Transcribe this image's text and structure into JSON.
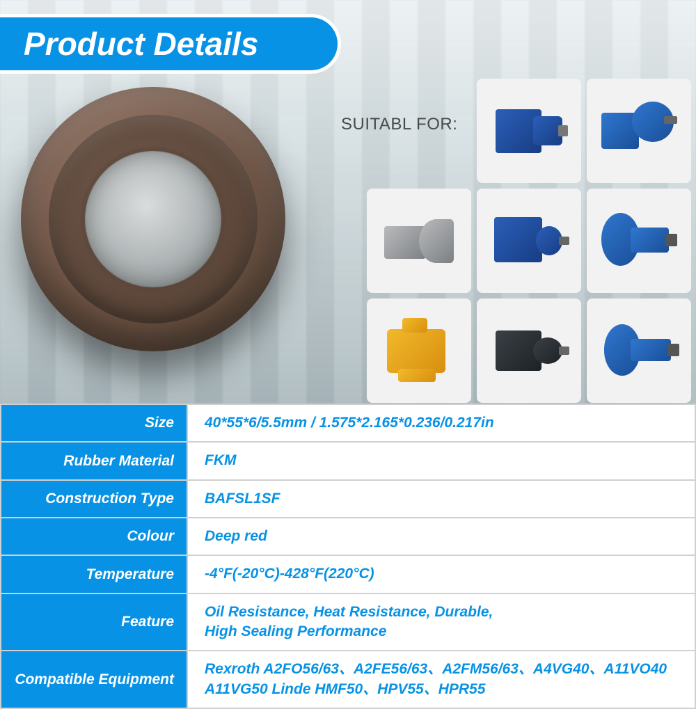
{
  "header": {
    "title": "Product Details"
  },
  "suitable_label": "SUITABL FOR:",
  "colors": {
    "brand_blue": "#0792e5",
    "value_text": "#0792e5",
    "border": "#d0d0d0"
  },
  "specs": [
    {
      "label": "Size",
      "value": "40*55*6/5.5mm / 1.575*2.165*0.236/0.217in",
      "tall": false
    },
    {
      "label": "Rubber Material",
      "value": "FKM",
      "tall": false
    },
    {
      "label": "Construction Type",
      "value": "BAFSL1SF",
      "tall": false
    },
    {
      "label": "Colour",
      "value": "Deep red",
      "tall": false
    },
    {
      "label": "Temperature",
      "value": "-4°F(-20°C)-428°F(220°C)",
      "tall": false
    },
    {
      "label": "Feature",
      "value": "Oil Resistance, Heat Resistance, Durable,\nHigh Sealing Performance",
      "tall": true
    },
    {
      "label": "Compatible Equipment",
      "value": "Rexroth A2FO56/63、A2FE56/63、A2FM56/63、A4VG40、A11VO40\nA11VG50       Linde HMF50、HPV55、HPR55",
      "tall": true
    }
  ],
  "tiles": [
    {
      "slot": 0,
      "hidden": true
    },
    {
      "slot": 1,
      "hidden": false,
      "style": "p-blue",
      "shape": "pump1"
    },
    {
      "slot": 2,
      "hidden": false,
      "style": "p-blue2",
      "shape": "pump2"
    },
    {
      "slot": 3,
      "hidden": false,
      "style": "p-grey",
      "shape": "pump3"
    },
    {
      "slot": 4,
      "hidden": false,
      "style": "p-blue",
      "shape": "pump4"
    },
    {
      "slot": 5,
      "hidden": false,
      "style": "p-blue2",
      "shape": "pump5"
    },
    {
      "slot": 6,
      "hidden": false,
      "style": "p-yellow",
      "shape": "pump6"
    },
    {
      "slot": 7,
      "hidden": false,
      "style": "p-dark",
      "shape": "pump7"
    },
    {
      "slot": 8,
      "hidden": false,
      "style": "p-blue2",
      "shape": "pump8"
    }
  ]
}
